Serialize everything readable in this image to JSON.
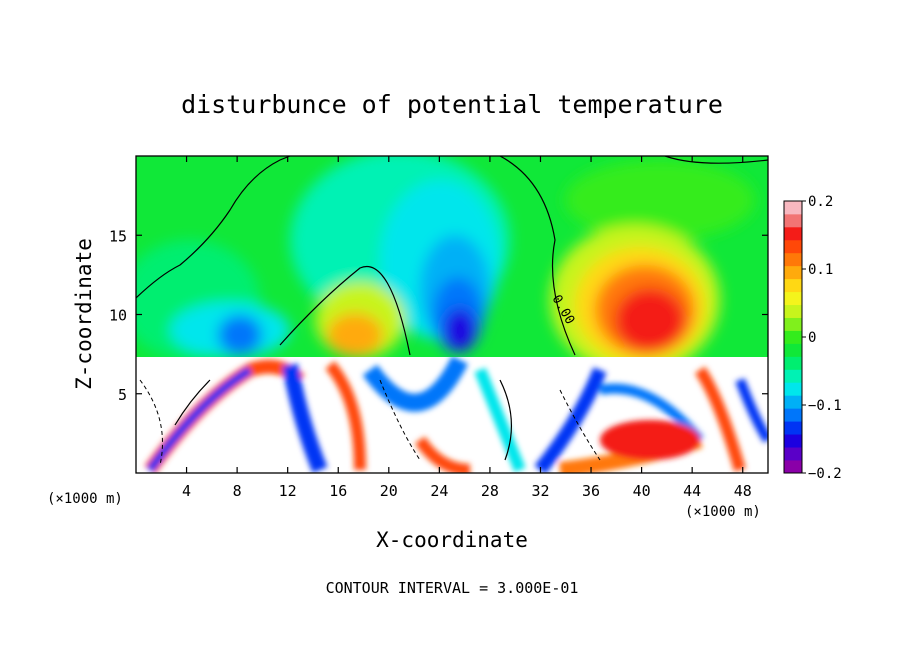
{
  "chart_data": {
    "type": "heatmap",
    "title": "disturbunce of potential temperature",
    "xlabel": "X-coordinate",
    "ylabel": "Z-coordinate",
    "x_unit_label": "(×1000 m)",
    "y_unit_label": "(×1000 m)",
    "xlim": [
      0,
      50
    ],
    "ylim": [
      0,
      20
    ],
    "x_ticks": [
      4,
      8,
      12,
      16,
      20,
      24,
      28,
      32,
      36,
      40,
      44,
      48
    ],
    "y_ticks": [
      5,
      10,
      15
    ],
    "colorbar": {
      "min": -0.2,
      "max": 0.2,
      "ticks": [
        {
          "value": 0.2,
          "label": "0.2"
        },
        {
          "value": 0.1,
          "label": "0.1"
        },
        {
          "value": 0.0,
          "label": "0"
        },
        {
          "value": -0.1,
          "label": "−0.1"
        },
        {
          "value": -0.2,
          "label": "−0.2"
        }
      ],
      "colors": [
        "#8a00a8",
        "#5a00c8",
        "#1c00e0",
        "#0034f4",
        "#0076fa",
        "#00b0f6",
        "#00e6ec",
        "#00f2b4",
        "#00ee70",
        "#10e838",
        "#34ec1c",
        "#80f01c",
        "#c8f41c",
        "#f4f41c",
        "#ffd814",
        "#ffaa0c",
        "#ff7808",
        "#ff4808",
        "#f41c18",
        "#f27474",
        "#f8b8c0"
      ]
    },
    "contour_label": "0.00",
    "contour_interval_text": "CONTOUR INTERVAL = 3.000E-01"
  }
}
